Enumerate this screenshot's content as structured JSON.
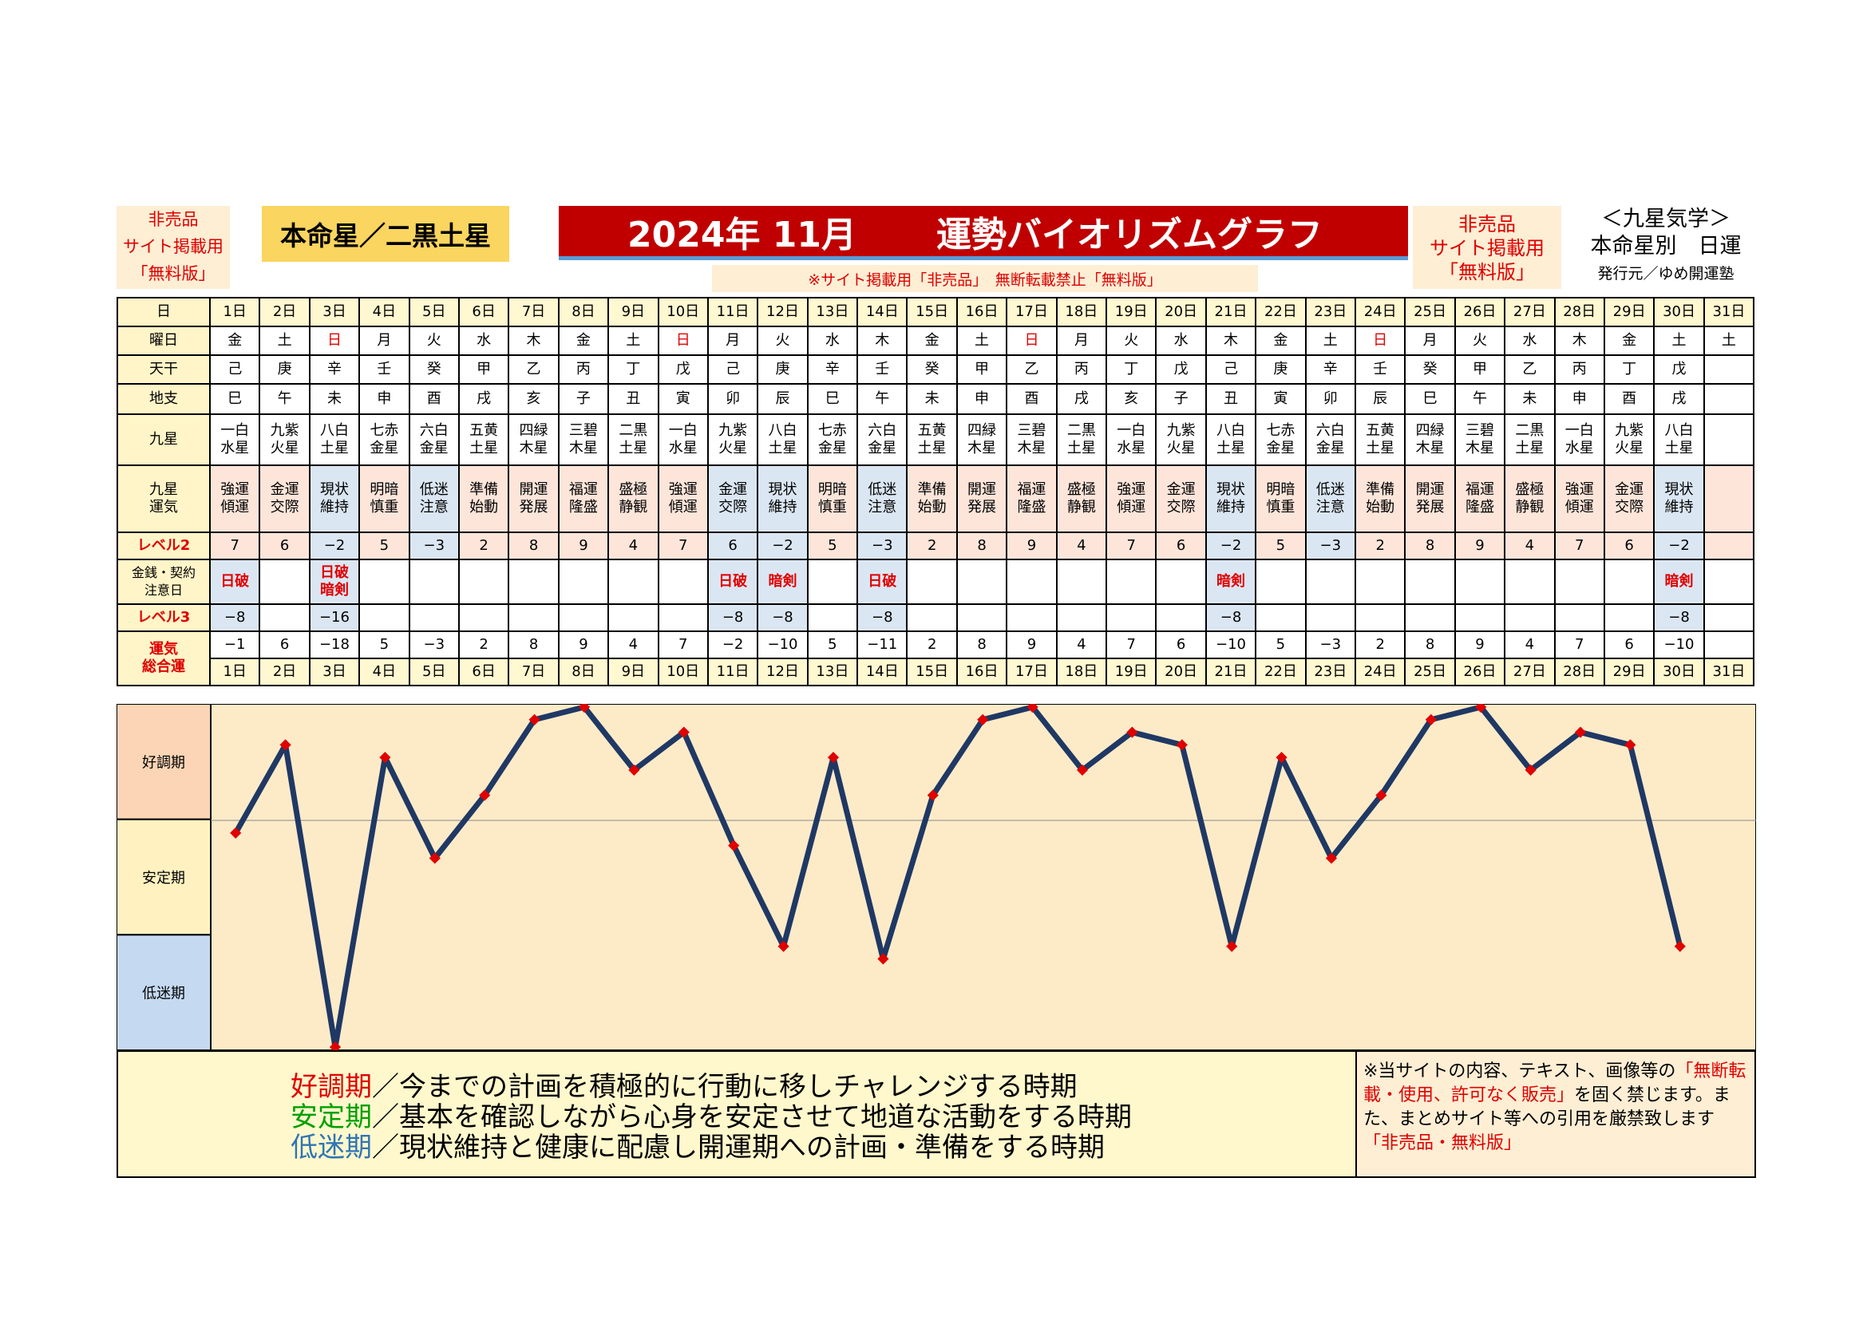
{
  "header": {
    "left_badge": [
      "非売品",
      "サイト掲載用",
      "「無料版」"
    ],
    "sign_label": "本命星／二黒土星",
    "title_month": "2024年 11月",
    "title_main": "運勢バイオリズムグラフ",
    "notice": "※サイト掲載用「非売品」　無断転載禁止「無料版」",
    "right_badge": [
      "非売品",
      "サイト掲載用",
      "「無料版」"
    ],
    "brand_line1": "＜九星気学＞",
    "brand_line2": "本命星別　日運",
    "brand_line3": "発行元／ゆめ開運塾"
  },
  "row_labels": {
    "day": "日",
    "weekday": "曜日",
    "tenkan": "天干",
    "chishi": "地支",
    "kyusei": "九星",
    "unki": "九星\n運気",
    "level2": "レベル2",
    "caution": "金銭・契約\n注意日",
    "level3": "レベル3",
    "total": "運気\n総合運"
  },
  "days": [
    "1日",
    "2日",
    "3日",
    "4日",
    "5日",
    "6日",
    "7日",
    "8日",
    "9日",
    "10日",
    "11日",
    "12日",
    "13日",
    "14日",
    "15日",
    "16日",
    "17日",
    "18日",
    "19日",
    "20日",
    "21日",
    "22日",
    "23日",
    "24日",
    "25日",
    "26日",
    "27日",
    "28日",
    "29日",
    "30日",
    "31日"
  ],
  "weekdays": [
    "金",
    "土",
    "日",
    "月",
    "火",
    "水",
    "木",
    "金",
    "土",
    "日",
    "月",
    "火",
    "水",
    "木",
    "金",
    "土",
    "日",
    "月",
    "火",
    "水",
    "木",
    "金",
    "土",
    "日",
    "月",
    "火",
    "水",
    "木",
    "金",
    "土",
    "土"
  ],
  "tenkan": [
    "己",
    "庚",
    "辛",
    "壬",
    "癸",
    "甲",
    "乙",
    "丙",
    "丁",
    "戊",
    "己",
    "庚",
    "辛",
    "壬",
    "癸",
    "甲",
    "乙",
    "丙",
    "丁",
    "戊",
    "己",
    "庚",
    "辛",
    "壬",
    "癸",
    "甲",
    "乙",
    "丙",
    "丁",
    "戊",
    ""
  ],
  "chishi": [
    "巳",
    "午",
    "未",
    "申",
    "酉",
    "戌",
    "亥",
    "子",
    "丑",
    "寅",
    "卯",
    "辰",
    "巳",
    "午",
    "未",
    "申",
    "酉",
    "戌",
    "亥",
    "子",
    "丑",
    "寅",
    "卯",
    "辰",
    "巳",
    "午",
    "未",
    "申",
    "酉",
    "戌",
    ""
  ],
  "kyusei": [
    "一白\n水星",
    "九紫\n火星",
    "八白\n土星",
    "七赤\n金星",
    "六白\n金星",
    "五黄\n土星",
    "四緑\n木星",
    "三碧\n木星",
    "二黒\n土星",
    "一白\n水星",
    "九紫\n火星",
    "八白\n土星",
    "七赤\n金星",
    "六白\n金星",
    "五黄\n土星",
    "四緑\n木星",
    "三碧\n木星",
    "二黒\n土星",
    "一白\n水星",
    "九紫\n火星",
    "八白\n土星",
    "七赤\n金星",
    "六白\n金星",
    "五黄\n土星",
    "四緑\n木星",
    "三碧\n木星",
    "二黒\n土星",
    "一白\n水星",
    "九紫\n火星",
    "八白\n土星",
    ""
  ],
  "unki": [
    "強運\n傾運",
    "金運\n交際",
    "現状\n維持",
    "明暗\n慎重",
    "低迷\n注意",
    "準備\n始動",
    "開運\n発展",
    "福運\n隆盛",
    "盛極\n静観",
    "強運\n傾運",
    "金運\n交際",
    "現状\n維持",
    "明暗\n慎重",
    "低迷\n注意",
    "準備\n始動",
    "開運\n発展",
    "福運\n隆盛",
    "盛極\n静観",
    "強運\n傾運",
    "金運\n交際",
    "現状\n維持",
    "明暗\n慎重",
    "低迷\n注意",
    "準備\n始動",
    "開運\n発展",
    "福運\n隆盛",
    "盛極\n静観",
    "強運\n傾運",
    "金運\n交際",
    "現状\n維持",
    ""
  ],
  "level2": [
    "7",
    "6",
    "−2",
    "5",
    "−3",
    "2",
    "8",
    "9",
    "4",
    "7",
    "6",
    "−2",
    "5",
    "−3",
    "2",
    "8",
    "9",
    "4",
    "7",
    "6",
    "−2",
    "5",
    "−3",
    "2",
    "8",
    "9",
    "4",
    "7",
    "6",
    "−2",
    ""
  ],
  "caution": [
    "日破",
    "",
    "日破\n暗剣",
    "",
    "",
    "",
    "",
    "",
    "",
    "",
    "日破",
    "暗剣",
    "",
    "日破",
    "",
    "",
    "",
    "",
    "",
    "",
    "暗剣",
    "",
    "",
    "",
    "",
    "",
    "",
    "",
    "",
    "暗剣",
    ""
  ],
  "level3": [
    "−8",
    "",
    "−16",
    "",
    "",
    "",
    "",
    "",
    "",
    "",
    "−8",
    "−8",
    "",
    "−8",
    "",
    "",
    "",
    "",
    "",
    "",
    "−8",
    "",
    "",
    "",
    "",
    "",
    "",
    "",
    "",
    "−8",
    ""
  ],
  "total": [
    "−1",
    "6",
    "−18",
    "5",
    "−3",
    "2",
    "8",
    "9",
    "4",
    "7",
    "−2",
    "−10",
    "5",
    "−11",
    "2",
    "8",
    "9",
    "4",
    "7",
    "6",
    "−10",
    "5",
    "−3",
    "2",
    "8",
    "9",
    "4",
    "7",
    "6",
    "−10",
    ""
  ],
  "periods": {
    "good": "好調期",
    "stable": "安定期",
    "low": "低迷期"
  },
  "legend": {
    "good_term": "好調期",
    "good_text": "／今までの計画を積極的に行動に移しチャレンジする時期",
    "stable_term": "安定期",
    "stable_text": "／基本を確認しながら心身を安定させて地道な活動をする時期",
    "low_term": "低迷期",
    "low_text": "／現状維持と健康に配慮し開運期への計画・準備をする時期"
  },
  "disclaimer": {
    "part1": "※当サイトの内容、テキスト、画像等の",
    "part2": "「無断転載・使用、許可なく販売」",
    "part3": "を固く禁じます。また、まとめサイト等への引用を厳禁致します",
    "part4": "「非売品・無料版」"
  },
  "colors": {
    "line": "#1f3864",
    "marker": "#e00000",
    "title_bg": "#c00000",
    "good_bg": "#fbd5b5",
    "stable_bg": "#fff2c0",
    "low_bg": "#c5d9f1",
    "plot_bg": "#fdebc8",
    "good_text": "#e00000",
    "stable_text": "#00a000",
    "low_text": "#2f75b5"
  },
  "chart_data": {
    "type": "line",
    "x": [
      1,
      2,
      3,
      4,
      5,
      6,
      7,
      8,
      9,
      10,
      11,
      12,
      13,
      14,
      15,
      16,
      17,
      18,
      19,
      20,
      21,
      22,
      23,
      24,
      25,
      26,
      27,
      28,
      29,
      30
    ],
    "series": [
      {
        "values": [
          -1,
          6,
          -18,
          5,
          -3,
          2,
          8,
          9,
          4,
          7,
          -2,
          -10,
          5,
          -11,
          2,
          8,
          9,
          4,
          7,
          6,
          -10,
          5,
          -3,
          2,
          8,
          9,
          4,
          7,
          6,
          -10
        ]
      }
    ],
    "ylim": [
      -18,
      9
    ],
    "bands": [
      {
        "label": "好調期",
        "from": 0,
        "to": 9
      },
      {
        "label": "安定期",
        "from": -9,
        "to": 0
      },
      {
        "label": "低迷期",
        "from": -18,
        "to": -9
      }
    ],
    "grid": false
  }
}
